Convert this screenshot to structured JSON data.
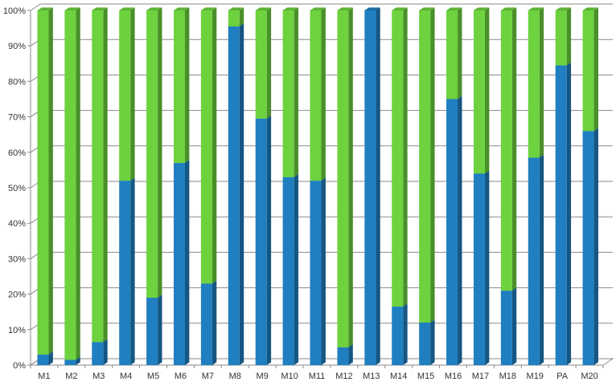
{
  "chart_data": {
    "type": "bar",
    "stacked": true,
    "percent_stacked": true,
    "three_d": true,
    "categories": [
      "M1",
      "M2",
      "M3",
      "M4",
      "M5",
      "M6",
      "M7",
      "M8",
      "M9",
      "M10",
      "M11",
      "M12",
      "M13",
      "M14",
      "M15",
      "M16",
      "M17",
      "M18",
      "M19",
      "PA",
      "M20"
    ],
    "series": [
      {
        "color": "#1f7fc0",
        "values": [
          3,
          1.5,
          6.5,
          52,
          19,
          57,
          23,
          95.5,
          69.5,
          53,
          52,
          5,
          100,
          16.5,
          12,
          75,
          54,
          21,
          58.5,
          84.5,
          66
        ]
      },
      {
        "color": "#6dd23e",
        "values": [
          97,
          98.5,
          93.5,
          48,
          81,
          43,
          77,
          4.5,
          30.5,
          47,
          48,
          95,
          0,
          83.5,
          88,
          25,
          46,
          79,
          41.5,
          15.5,
          34
        ]
      }
    ],
    "y_ticks": [
      "0%",
      "10%",
      "20%",
      "30%",
      "40%",
      "50%",
      "60%",
      "70%",
      "80%",
      "90%",
      "100%"
    ],
    "ylim": [
      0,
      100
    ],
    "grid": true,
    "legend": "none",
    "title": "",
    "xlabel": "",
    "ylabel": ""
  }
}
